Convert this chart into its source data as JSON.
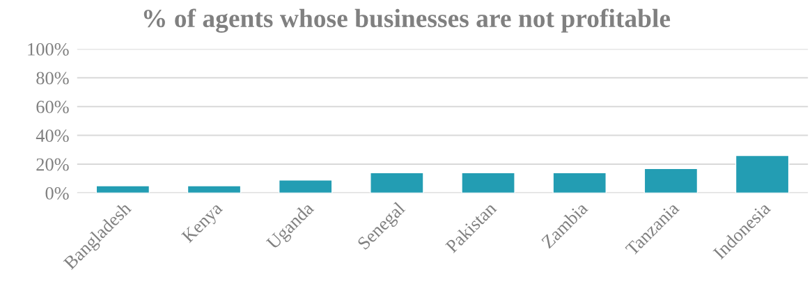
{
  "chart_data": {
    "type": "bar",
    "title": "% of agents whose businesses are not profitable",
    "categories": [
      "Bangladesh",
      "Kenya",
      "Uganda",
      "Senegal",
      "Pakistan",
      "Zambia",
      "Tanzania",
      "Indonesia"
    ],
    "values": [
      5,
      5,
      9,
      14,
      14,
      14,
      17,
      26
    ],
    "color": "#239db3",
    "ylim": [
      0,
      100
    ],
    "yticks": [
      {
        "value": 0,
        "label": "0%"
      },
      {
        "value": 20,
        "label": "20%"
      },
      {
        "value": 40,
        "label": "40%"
      },
      {
        "value": 60,
        "label": "60%"
      },
      {
        "value": 80,
        "label": "80%"
      },
      {
        "value": 100,
        "label": "100%"
      }
    ],
    "grid": "y",
    "legend": false
  }
}
